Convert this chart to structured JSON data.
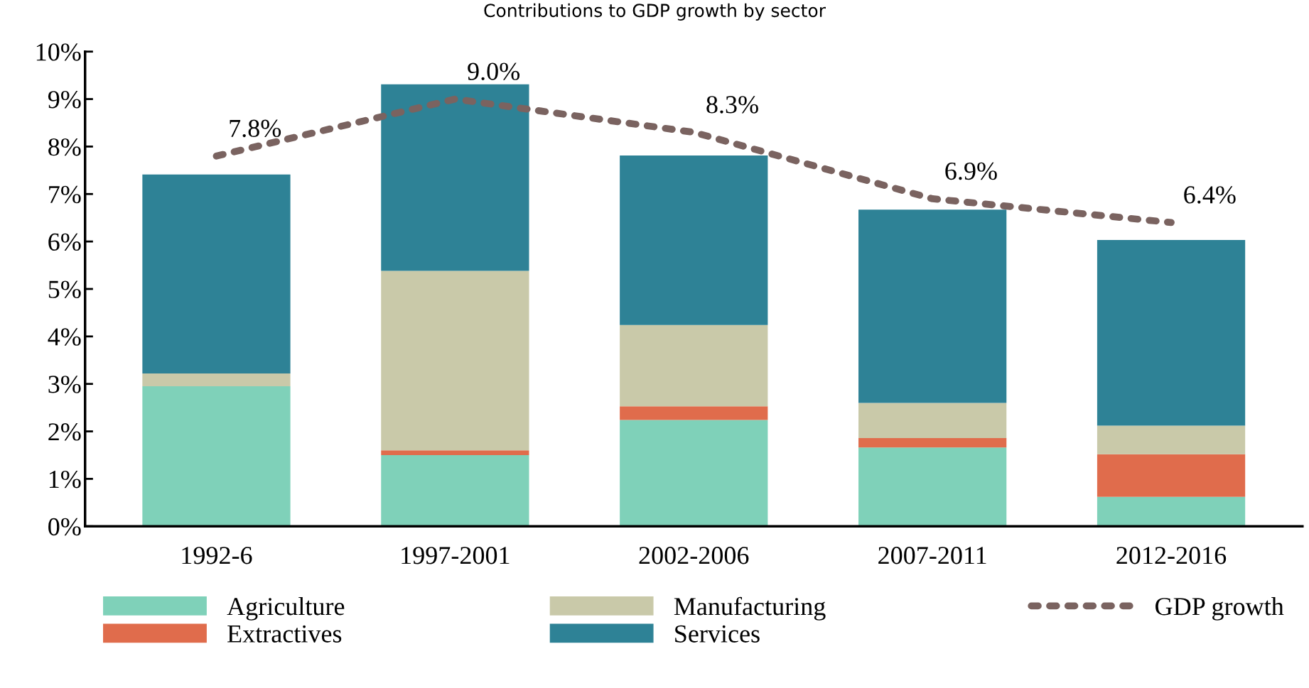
{
  "chart_data": {
    "type": "bar",
    "title": "Contributions to GDP growth by sector",
    "categories": [
      "1992-6",
      "1997-2001",
      "2002-2006",
      "2007-2011",
      "2012-2016"
    ],
    "stacked": true,
    "series": [
      {
        "name": "Agriculture",
        "color": "#7fd1b9",
        "values": [
          2.95,
          1.5,
          2.24,
          1.66,
          0.62
        ]
      },
      {
        "name": "Extractives",
        "color": "#e06c4c",
        "values": [
          0,
          0.1,
          0.29,
          0.2,
          0.9
        ]
      },
      {
        "name": "Manufacturing",
        "color": "#c9c9a9",
        "values": [
          0.27,
          3.78,
          1.71,
          0.74,
          0.6
        ]
      },
      {
        "name": "Services",
        "color": "#2e8296",
        "values": [
          4.19,
          3.93,
          3.57,
          4.07,
          3.91
        ]
      },
      {
        "name": "GDP growth",
        "type": "line",
        "line_style": "dotted",
        "color": "#7a6360",
        "values": [
          7.8,
          9.0,
          8.3,
          6.9,
          6.4
        ],
        "value_labels": [
          "7.8%",
          "9.0%",
          "8.3%",
          "6.9%",
          "6.4%"
        ]
      }
    ],
    "ylim": [
      0,
      10
    ],
    "yticks": [
      {
        "value": 0,
        "label": "0%"
      },
      {
        "value": 1,
        "label": "1%"
      },
      {
        "value": 2,
        "label": "2%"
      },
      {
        "value": 3,
        "label": "3%"
      },
      {
        "value": 4,
        "label": "4%"
      },
      {
        "value": 5,
        "label": "5%"
      },
      {
        "value": 6,
        "label": "6%"
      },
      {
        "value": 7,
        "label": "7%"
      },
      {
        "value": 8,
        "label": "8%"
      },
      {
        "value": 9,
        "label": "9%"
      },
      {
        "value": 10,
        "label": "10%"
      }
    ],
    "grid": false,
    "legend": "bottom"
  }
}
